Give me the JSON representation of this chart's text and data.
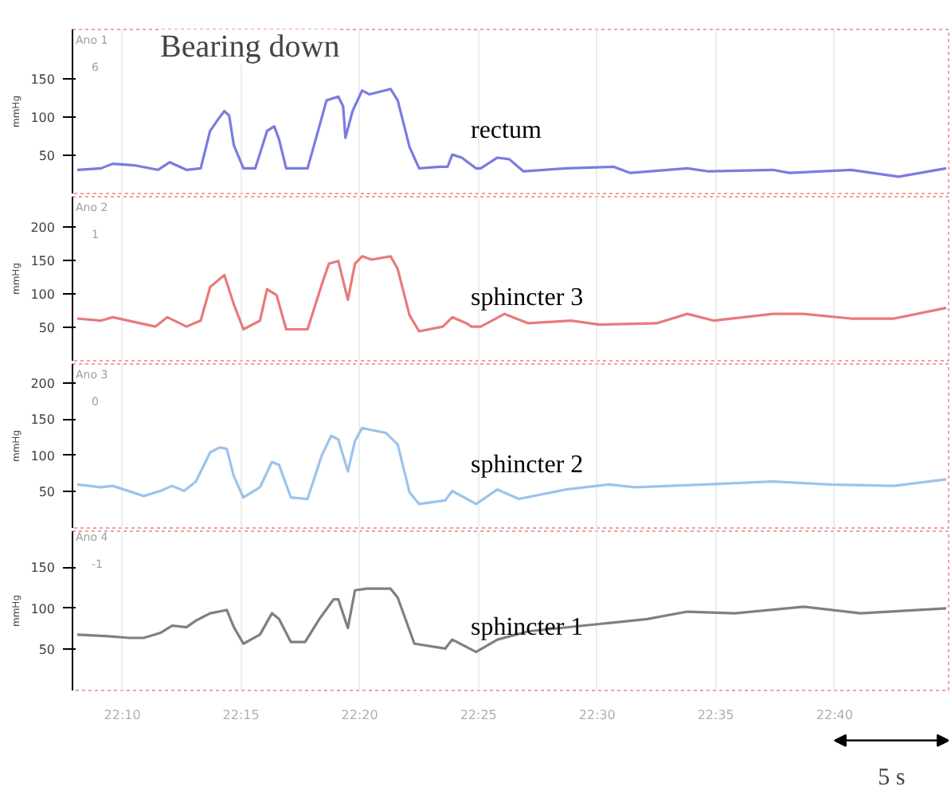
{
  "chart_data": [
    {
      "type": "line",
      "title": "Bearing down",
      "ylabel": "mmHg",
      "annotations": [
        "Ano 1",
        "6"
      ],
      "xlim": [
        22.1317,
        22.7467
      ],
      "ylim": [
        0,
        215
      ],
      "yticks": [
        50,
        100,
        150
      ],
      "xticks": [
        22.1667,
        22.25,
        22.3333,
        22.4167,
        22.5,
        22.5833,
        22.6667
      ],
      "tick_labels": "y",
      "grid": "x",
      "series": [
        {
          "name": "rectum",
          "color": "#7b7be0",
          "x": [
            22.135,
            22.1517,
            22.16,
            22.175,
            22.1917,
            22.2,
            22.2117,
            22.2217,
            22.2283,
            22.235,
            22.2383,
            22.2417,
            22.245,
            22.2517,
            22.26,
            22.2683,
            22.2733,
            22.2767,
            22.2817,
            22.2967,
            22.305,
            22.31,
            22.3183,
            22.3217,
            22.3233,
            22.3283,
            22.335,
            22.34,
            22.3467,
            22.355,
            22.36,
            22.3683,
            22.375,
            22.39,
            22.395,
            22.3983,
            22.405,
            22.415,
            22.4183,
            22.43,
            22.4383,
            22.4483,
            22.4783,
            22.5117,
            22.5233,
            22.5633,
            22.5783,
            22.6233,
            22.635,
            22.6783,
            22.7117,
            22.745
          ],
          "values": [
            31,
            33,
            39,
            37,
            31,
            41,
            31,
            33,
            82,
            100,
            108,
            102,
            63,
            33,
            33,
            82,
            88,
            71,
            33,
            33,
            88,
            122,
            127,
            114,
            73,
            108,
            135,
            130,
            133,
            137,
            122,
            61,
            33,
            35,
            35,
            51,
            47,
            33,
            33,
            47,
            45,
            29,
            33,
            35,
            27,
            33,
            29,
            31,
            27,
            31,
            22,
            33
          ]
        }
      ]
    },
    {
      "type": "line",
      "ylabel": "mmHg",
      "annotations": [
        "Ano 2",
        "1"
      ],
      "xlim": [
        22.1317,
        22.7467
      ],
      "ylim": [
        0,
        245
      ],
      "yticks": [
        50,
        100,
        150,
        200
      ],
      "xticks": [
        22.1667,
        22.25,
        22.3333,
        22.4167,
        22.5,
        22.5833,
        22.6667
      ],
      "tick_labels": "y",
      "grid": "x",
      "series": [
        {
          "name": "sphincter 3",
          "color": "#e87a7a",
          "x": [
            22.135,
            22.1517,
            22.16,
            22.19,
            22.1983,
            22.2117,
            22.2217,
            22.2283,
            22.2383,
            22.245,
            22.2517,
            22.2633,
            22.2683,
            22.275,
            22.2817,
            22.2967,
            22.3067,
            22.3117,
            22.3183,
            22.325,
            22.33,
            22.335,
            22.3417,
            22.355,
            22.36,
            22.3683,
            22.375,
            22.3917,
            22.3983,
            22.4083,
            22.4117,
            22.4183,
            22.435,
            22.4517,
            22.4817,
            22.5017,
            22.5417,
            22.5633,
            22.5817,
            22.6233,
            22.645,
            22.6783,
            22.7083,
            22.745
          ],
          "values": [
            63,
            60,
            65,
            51,
            65,
            51,
            60,
            110,
            128,
            84,
            47,
            60,
            107,
            98,
            47,
            47,
            114,
            145,
            149,
            91,
            145,
            156,
            151,
            156,
            137,
            68,
            44,
            51,
            65,
            56,
            51,
            51,
            70,
            56,
            60,
            54,
            56,
            70,
            60,
            70,
            70,
            63,
            63,
            79
          ]
        }
      ]
    },
    {
      "type": "line",
      "ylabel": "mmHg",
      "annotations": [
        "Ano 3",
        "0"
      ],
      "xlim": [
        22.1317,
        22.7467
      ],
      "ylim": [
        0,
        226
      ],
      "yticks": [
        50,
        100,
        150,
        200
      ],
      "xticks": [
        22.1667,
        22.25,
        22.3333,
        22.4167,
        22.5,
        22.5833,
        22.6667
      ],
      "tick_labels": "y",
      "grid": "x",
      "series": [
        {
          "name": "sphincter 2",
          "color": "#9cc3ea",
          "x": [
            22.135,
            22.1517,
            22.16,
            22.1817,
            22.1933,
            22.2017,
            22.21,
            22.2183,
            22.2283,
            22.235,
            22.24,
            22.245,
            22.2517,
            22.2633,
            22.2717,
            22.2767,
            22.285,
            22.2967,
            22.3067,
            22.3133,
            22.3183,
            22.325,
            22.33,
            22.335,
            22.3417,
            22.3517,
            22.36,
            22.3683,
            22.375,
            22.3933,
            22.3983,
            22.415,
            22.43,
            22.445,
            22.4783,
            22.5083,
            22.5267,
            22.575,
            22.6233,
            22.6633,
            22.7083,
            22.745
          ],
          "values": [
            60,
            56,
            58,
            44,
            51,
            58,
            51,
            64,
            104,
            111,
            109,
            71,
            42,
            56,
            91,
            87,
            42,
            40,
            100,
            127,
            122,
            78,
            120,
            138,
            135,
            131,
            115,
            49,
            33,
            38,
            51,
            33,
            53,
            40,
            53,
            60,
            56,
            60,
            64,
            60,
            58,
            67
          ]
        }
      ]
    },
    {
      "type": "line",
      "ylabel": "mmHg",
      "annotations": [
        "Ano 4",
        "-1",
        "5 s"
      ],
      "xlim": [
        22.1317,
        22.7467
      ],
      "ylim": [
        0,
        194
      ],
      "yticks": [
        50,
        100,
        150
      ],
      "xticks": [
        {
          "value": 22.1667,
          "label": "22:10"
        },
        {
          "value": 22.25,
          "label": "22:15"
        },
        {
          "value": 22.3333,
          "label": "22:20"
        },
        {
          "value": 22.4167,
          "label": "22:25"
        },
        {
          "value": 22.5,
          "label": "22:30"
        },
        {
          "value": 22.5833,
          "label": "22:35"
        },
        {
          "value": 22.6667,
          "label": "22:40"
        }
      ],
      "grid": "x",
      "series": [
        {
          "name": "sphincter 1",
          "color": "#808080",
          "x": [
            22.135,
            22.1567,
            22.1717,
            22.1817,
            22.1933,
            22.2017,
            22.2117,
            22.2183,
            22.2283,
            22.24,
            22.245,
            22.2517,
            22.2633,
            22.2717,
            22.2767,
            22.285,
            22.295,
            22.305,
            22.315,
            22.3183,
            22.325,
            22.33,
            22.3383,
            22.355,
            22.36,
            22.3717,
            22.3933,
            22.3983,
            22.415,
            22.43,
            22.4517,
            22.5017,
            22.535,
            22.5633,
            22.5967,
            22.645,
            22.685,
            22.745
          ],
          "values": [
            68,
            66,
            64,
            64,
            70,
            79,
            77,
            85,
            94,
            98,
            77,
            57,
            68,
            94,
            87,
            59,
            59,
            87,
            111,
            111,
            76,
            122,
            124,
            124,
            113,
            57,
            51,
            62,
            47,
            62,
            72,
            81,
            87,
            96,
            94,
            102,
            94,
            100
          ]
        }
      ]
    }
  ]
}
